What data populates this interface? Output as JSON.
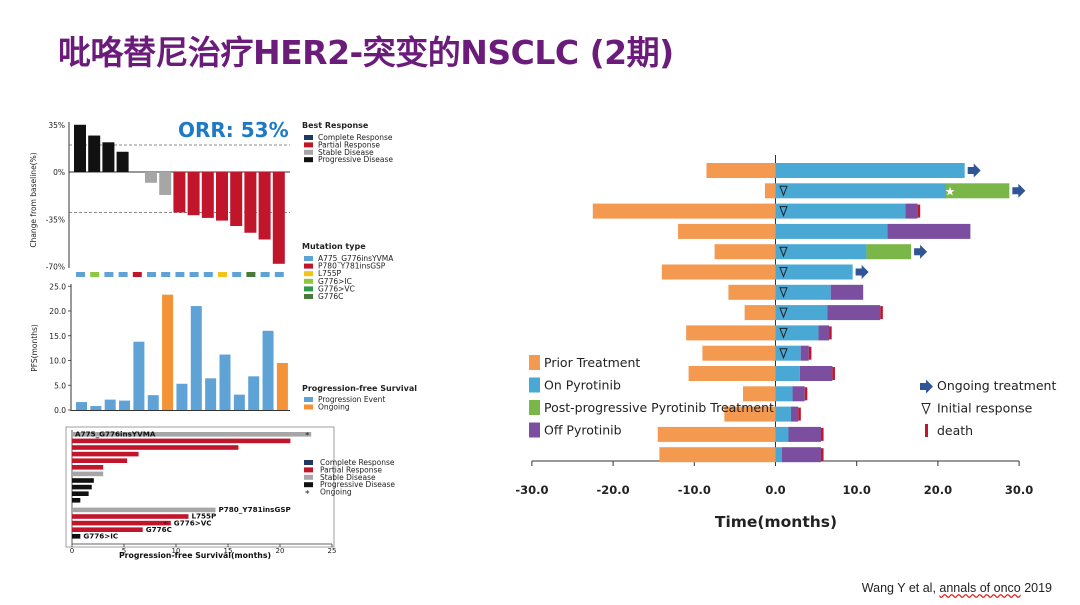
{
  "slide": {
    "title": "吡咯替尼治疗HER2-突变的NSCLC (2期)",
    "citation_prefix": "Wang Y et al, ",
    "citation_link": "annals of onco",
    "citation_suffix": " 2019"
  },
  "colors": {
    "title": "#6b1c7a",
    "complete": "#1f3864",
    "partial": "#c0152b",
    "stable": "#a6a6a6",
    "progressive": "#111111",
    "progression_event": "#5fa3d6",
    "ongoing_orange": "#f39237",
    "prior_treatment": "#f39a50",
    "on_pyrotinib": "#4aa8d4",
    "post_progressive": "#7ab648",
    "off_pyrotinib": "#7b4ea0",
    "arrow": "#2f5597",
    "death": "#c0152b"
  },
  "chart_data": [
    {
      "id": "waterfall",
      "type": "bar",
      "orr_label": "ORR: 53%",
      "ylabel": "Change from baseline(%)",
      "yticks": [
        "35%",
        "0%",
        "-35%",
        "-70%"
      ],
      "ytick_values": [
        35,
        0,
        -35,
        -70
      ],
      "ylim": [
        -70,
        35
      ],
      "reference_lines": [
        20,
        -30
      ],
      "values": [
        35,
        27,
        22,
        15,
        0,
        -8,
        -17,
        -30,
        -32,
        -34,
        -36,
        -40,
        -45,
        -50,
        -68
      ],
      "responses": [
        "progressive",
        "progressive",
        "progressive",
        "progressive",
        "progressive",
        "stable",
        "stable",
        "partial",
        "partial",
        "partial",
        "partial",
        "partial",
        "partial",
        "partial",
        "partial"
      ],
      "legend_title": "Best Response",
      "legend": [
        {
          "key": "complete",
          "label": "Complete Response"
        },
        {
          "key": "partial",
          "label": "Partial Response"
        },
        {
          "key": "stable",
          "label": "Stable Disease"
        },
        {
          "key": "progressive",
          "label": "Progressive Disease"
        }
      ],
      "mutation_title": "Mutation type",
      "mutation_row": [
        "a775",
        "g776ic",
        "a775",
        "a775",
        "p780",
        "a775",
        "a775",
        "a775",
        "a775",
        "a775",
        "l755p",
        "a775",
        "g776c",
        "a775",
        "a775"
      ],
      "mutation_legend": [
        {
          "key": "a775",
          "label": "A775_G776insYVMA",
          "color": "#5fa3d6"
        },
        {
          "key": "p780",
          "label": "P780_Y781insGSP",
          "color": "#c0152b"
        },
        {
          "key": "l755p",
          "label": "L755P",
          "color": "#f2c318"
        },
        {
          "key": "g776ic",
          "label": "G776>IC",
          "color": "#8dc63f"
        },
        {
          "key": "g776vc",
          "label": "G776>VC",
          "color": "#2e9a4a"
        },
        {
          "key": "g776c",
          "label": "G776C",
          "color": "#4a7a3a"
        }
      ]
    },
    {
      "id": "pfs-bars",
      "type": "bar",
      "ylabel": "PFS(months)",
      "yticks": [
        "0.0",
        "5.0",
        "10.0",
        "15.0",
        "20.0",
        "25.0"
      ],
      "ytick_values": [
        0,
        5,
        10,
        15,
        20,
        25
      ],
      "ylim": [
        0,
        25
      ],
      "values": [
        1.6,
        0.8,
        2.1,
        1.9,
        13.8,
        3.0,
        23.3,
        5.3,
        21.0,
        6.4,
        11.2,
        3.1,
        6.8,
        16.0,
        9.5
      ],
      "status": [
        "event",
        "event",
        "event",
        "event",
        "event",
        "event",
        "ongoing",
        "event",
        "event",
        "event",
        "event",
        "event",
        "event",
        "event",
        "ongoing"
      ],
      "legend_title": "Progression-free Survival",
      "legend": [
        {
          "key": "event",
          "label": "Progression Event"
        },
        {
          "key": "ongoing",
          "label": "Ongoing"
        }
      ]
    },
    {
      "id": "swimmer-small",
      "type": "bar",
      "xlabel": "Progression-free Survival(months)",
      "xticks": [
        "0",
        "5",
        "10",
        "15",
        "20",
        "25"
      ],
      "xtick_values": [
        0,
        5,
        10,
        15,
        20,
        25
      ],
      "xlim": [
        0,
        25
      ],
      "rows": [
        {
          "value": 23.0,
          "response": "stable",
          "label": "A775_G776insYVMA",
          "ongoing": true
        },
        {
          "value": 21.0,
          "response": "partial",
          "label": "",
          "ongoing": false
        },
        {
          "value": 16.0,
          "response": "partial",
          "label": "",
          "ongoing": false
        },
        {
          "value": 6.4,
          "response": "partial",
          "label": "",
          "ongoing": false
        },
        {
          "value": 5.3,
          "response": "partial",
          "label": "",
          "ongoing": false
        },
        {
          "value": 3.0,
          "response": "partial",
          "label": "",
          "ongoing": false
        },
        {
          "value": 3.0,
          "response": "stable",
          "label": "",
          "ongoing": false
        },
        {
          "value": 2.1,
          "response": "progressive",
          "label": "",
          "ongoing": false
        },
        {
          "value": 1.9,
          "response": "progressive",
          "label": "",
          "ongoing": false
        },
        {
          "value": 1.6,
          "response": "progressive",
          "label": "",
          "ongoing": false
        },
        {
          "value": 0.8,
          "response": "progressive",
          "label": "",
          "ongoing": false
        },
        {
          "value": 13.8,
          "response": "stable",
          "label": "P780_Y781insGSP",
          "ongoing": false
        },
        {
          "value": 11.2,
          "response": "partial",
          "label": "L755P",
          "ongoing": false
        },
        {
          "value": 9.5,
          "response": "partial",
          "label": "G776>VC",
          "ongoing": true
        },
        {
          "value": 6.8,
          "response": "partial",
          "label": "G776C",
          "ongoing": false
        },
        {
          "value": 0.8,
          "response": "progressive",
          "label": "G776>IC",
          "ongoing": false
        }
      ],
      "legend": [
        {
          "key": "complete",
          "label": "Complete Response"
        },
        {
          "key": "partial",
          "label": "Partial Response"
        },
        {
          "key": "stable",
          "label": "Stable Disease"
        },
        {
          "key": "progressive",
          "label": "Progressive Disease"
        },
        {
          "key": "ongoing",
          "label": "Ongoing",
          "symbol": "*"
        }
      ]
    },
    {
      "id": "swimmer-large",
      "type": "bar",
      "xlabel": "Time(months)",
      "xticks": [
        "-30.0",
        "-20.0",
        "-10.0",
        "0.0",
        "10.0",
        "20.0",
        "30.0"
      ],
      "xtick_values": [
        -30,
        -20,
        -10,
        0,
        10,
        20,
        30
      ],
      "xlim": [
        -30,
        30
      ],
      "rows": [
        {
          "prior": -8.5,
          "on": 23.3,
          "post": 0,
          "off": 0,
          "arrow": true,
          "initial": false,
          "death": false
        },
        {
          "prior": -1.3,
          "on": 21.0,
          "post": 7.8,
          "off": 0,
          "arrow": true,
          "initial": true,
          "death": false,
          "star": true
        },
        {
          "prior": -22.5,
          "on": 16.0,
          "post": 0,
          "off": 1.5,
          "arrow": false,
          "initial": true,
          "death": true
        },
        {
          "prior": -12.0,
          "on": 13.8,
          "post": 0,
          "off": 10.2,
          "arrow": false,
          "initial": false,
          "death": false
        },
        {
          "prior": -7.5,
          "on": 11.2,
          "post": 5.5,
          "off": 0,
          "arrow": true,
          "initial": true,
          "death": false
        },
        {
          "prior": -14.0,
          "on": 9.5,
          "post": 0,
          "off": 0,
          "arrow": true,
          "initial": true,
          "death": false
        },
        {
          "prior": -5.8,
          "on": 6.8,
          "post": 0,
          "off": 4.0,
          "arrow": false,
          "initial": true,
          "death": false
        },
        {
          "prior": -3.8,
          "on": 6.4,
          "post": 0,
          "off": 6.5,
          "arrow": false,
          "initial": true,
          "death": true
        },
        {
          "prior": -11.0,
          "on": 5.3,
          "post": 0,
          "off": 1.3,
          "arrow": false,
          "initial": true,
          "death": true
        },
        {
          "prior": -9.0,
          "on": 3.1,
          "post": 0,
          "off": 1.0,
          "arrow": false,
          "initial": true,
          "death": true
        },
        {
          "prior": -10.7,
          "on": 3.0,
          "post": 0,
          "off": 4.0,
          "arrow": false,
          "initial": false,
          "death": true
        },
        {
          "prior": -4.0,
          "on": 2.1,
          "post": 0,
          "off": 1.5,
          "arrow": false,
          "initial": false,
          "death": true
        },
        {
          "prior": -6.3,
          "on": 1.9,
          "post": 0,
          "off": 0.9,
          "arrow": false,
          "initial": false,
          "death": true
        },
        {
          "prior": -14.5,
          "on": 1.6,
          "post": 0,
          "off": 4.0,
          "arrow": false,
          "initial": false,
          "death": true
        },
        {
          "prior": -14.3,
          "on": 0.8,
          "post": 0,
          "off": 4.8,
          "arrow": false,
          "initial": false,
          "death": true
        }
      ],
      "legend_left": [
        {
          "key": "prior_treatment",
          "label": "Prior Treatment"
        },
        {
          "key": "on_pyrotinib",
          "label": "On Pyrotinib"
        },
        {
          "key": "post_progressive",
          "label": "Post-progressive Pyrotinib Treatment"
        },
        {
          "key": "off_pyrotinib",
          "label": "Off Pyrotinib"
        }
      ],
      "legend_right": [
        {
          "key": "arrow",
          "label": "Ongoing treatment"
        },
        {
          "key": "initial",
          "label": "Initial response"
        },
        {
          "key": "death",
          "label": "death"
        }
      ]
    }
  ]
}
